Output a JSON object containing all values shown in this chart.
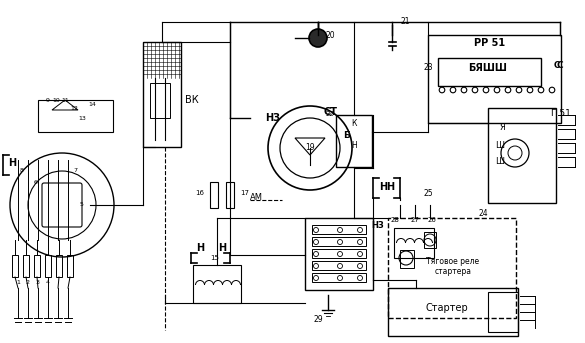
{
  "bg_color": "#ffffff",
  "line_color": "#000000",
  "labels": {
    "VK": "ВК",
    "AM": "АМ",
    "ST": "СТ",
    "NZ": "НЗ",
    "PP51": "РР 51",
    "BYASHSH": "БЯШШ",
    "G51": "Г 51",
    "C": "С",
    "Ya": "Я",
    "Sh": "Ш",
    "starter": "Стартер",
    "tyagovoe": "Тяговое реле",
    "startera": "стартера",
    "B_label": "Б",
    "K_label": "К",
    "N_label": "Н"
  }
}
